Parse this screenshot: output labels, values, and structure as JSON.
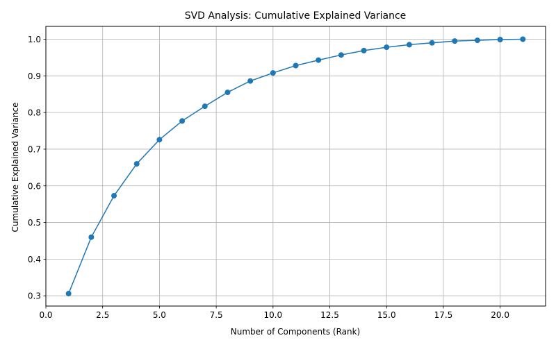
{
  "chart_data": {
    "type": "line",
    "title": "SVD Analysis: Cumulative Explained Variance",
    "xlabel": "Number of Components (Rank)",
    "ylabel": "Cumulative Explained Variance",
    "xlim": [
      0,
      22
    ],
    "ylim": [
      0.272,
      1.035
    ],
    "xticks": [
      "0.0",
      "2.5",
      "5.0",
      "7.5",
      "10.0",
      "12.5",
      "15.0",
      "17.5",
      "20.0"
    ],
    "yticks": [
      "0.3",
      "0.4",
      "0.5",
      "0.6",
      "0.7",
      "0.8",
      "0.9",
      "1.0"
    ],
    "grid": true,
    "marker": "circle",
    "series": [
      {
        "color": "#1f77b4",
        "x": [
          1,
          2,
          3,
          4,
          5,
          6,
          7,
          8,
          9,
          10,
          11,
          12,
          13,
          14,
          15,
          16,
          17,
          18,
          19,
          20,
          21
        ],
        "values": [
          0.306,
          0.46,
          0.573,
          0.66,
          0.726,
          0.777,
          0.817,
          0.855,
          0.886,
          0.908,
          0.928,
          0.943,
          0.957,
          0.969,
          0.978,
          0.985,
          0.99,
          0.995,
          0.997,
          0.999,
          1.0
        ]
      }
    ]
  }
}
